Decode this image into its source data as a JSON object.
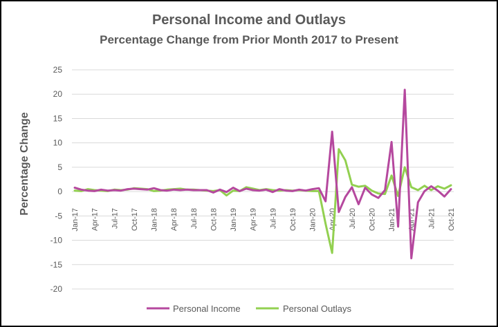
{
  "chart_data": {
    "type": "line",
    "title": "Personal Income and Outlays",
    "subtitle": "Percentage Change from Prior Month 2017 to Present",
    "ylabel": "Percentage Change",
    "xlabel": "",
    "ylim": [
      -20,
      25
    ],
    "y_ticks": [
      25,
      20,
      15,
      10,
      5,
      0,
      -5,
      -10,
      -15,
      -20
    ],
    "grid": true,
    "legend": "bottom",
    "x": [
      "Jan-17",
      "Feb-17",
      "Mar-17",
      "Apr-17",
      "May-17",
      "Jun-17",
      "Jul-17",
      "Aug-17",
      "Sep-17",
      "Oct-17",
      "Nov-17",
      "Dec-17",
      "Jan-18",
      "Feb-18",
      "Mar-18",
      "Apr-18",
      "May-18",
      "Jun-18",
      "Jul-18",
      "Aug-18",
      "Sep-18",
      "Oct-18",
      "Nov-18",
      "Dec-18",
      "Jan-19",
      "Feb-19",
      "Mar-19",
      "Apr-19",
      "May-19",
      "Jun-19",
      "Jul-19",
      "Aug-19",
      "Sep-19",
      "Oct-19",
      "Nov-19",
      "Dec-19",
      "Jan-20",
      "Feb-20",
      "Mar-20",
      "Apr-20",
      "May-20",
      "Jun-20",
      "Jul-20",
      "Aug-20",
      "Sep-20",
      "Oct-20",
      "Nov-20",
      "Dec-20",
      "Jan-21",
      "Feb-21",
      "Mar-21",
      "Apr-21",
      "May-21",
      "Jun-21",
      "Jul-21",
      "Aug-21",
      "Sep-21",
      "Oct-21"
    ],
    "x_tick_labels": [
      "Jan-17",
      "Apr-17",
      "Jul-17",
      "Oct-17",
      "Jan-18",
      "Apr-18",
      "Jul-18",
      "Oct-18",
      "Jan-19",
      "Apr-19",
      "Jul-19",
      "Oct-19",
      "Jan-20",
      "Apr-20",
      "Jul-20",
      "Oct-20",
      "Jan-21",
      "Apr-21",
      "Jul-21",
      "Oct-21"
    ],
    "series": [
      {
        "name": "Personal Income",
        "color": "#B5489E",
        "values": [
          0.8,
          0.4,
          0.2,
          0.1,
          0.4,
          0.2,
          0.3,
          0.2,
          0.5,
          0.6,
          0.5,
          0.4,
          0.7,
          0.3,
          0.2,
          0.4,
          0.3,
          0.4,
          0.3,
          0.3,
          0.3,
          -0.2,
          0.4,
          -0.1,
          0.8,
          0.1,
          0.6,
          0.3,
          0.2,
          0.4,
          -0.1,
          0.5,
          0.2,
          0.1,
          0.4,
          0.2,
          0.5,
          0.7,
          -2.0,
          12.3,
          -4.2,
          -1.1,
          0.9,
          -2.6,
          0.8,
          -0.6,
          -1.3,
          0.3,
          10.2,
          -7.2,
          20.9,
          -13.7,
          -2.2,
          0.1,
          1.1,
          0.2,
          -1.0,
          0.5
        ]
      },
      {
        "name": "Personal Outlays",
        "color": "#92D050",
        "values": [
          0.2,
          0.1,
          0.5,
          0.3,
          0.2,
          0.1,
          0.4,
          0.3,
          0.4,
          0.7,
          0.6,
          0.5,
          0.1,
          0.2,
          0.4,
          0.5,
          0.6,
          0.4,
          0.4,
          0.3,
          0.2,
          0.1,
          0.3,
          -0.8,
          0.2,
          0.1,
          0.9,
          0.6,
          0.3,
          0.5,
          0.3,
          0.2,
          0.3,
          0.2,
          0.3,
          0.2,
          0.1,
          0.1,
          -6.6,
          -12.6,
          8.7,
          6.4,
          1.4,
          1.0,
          1.2,
          0.2,
          -0.4,
          -0.5,
          3.3,
          -0.9,
          5.0,
          0.9,
          0.3,
          1.2,
          0.3,
          1.1,
          0.6,
          1.3
        ]
      }
    ]
  }
}
